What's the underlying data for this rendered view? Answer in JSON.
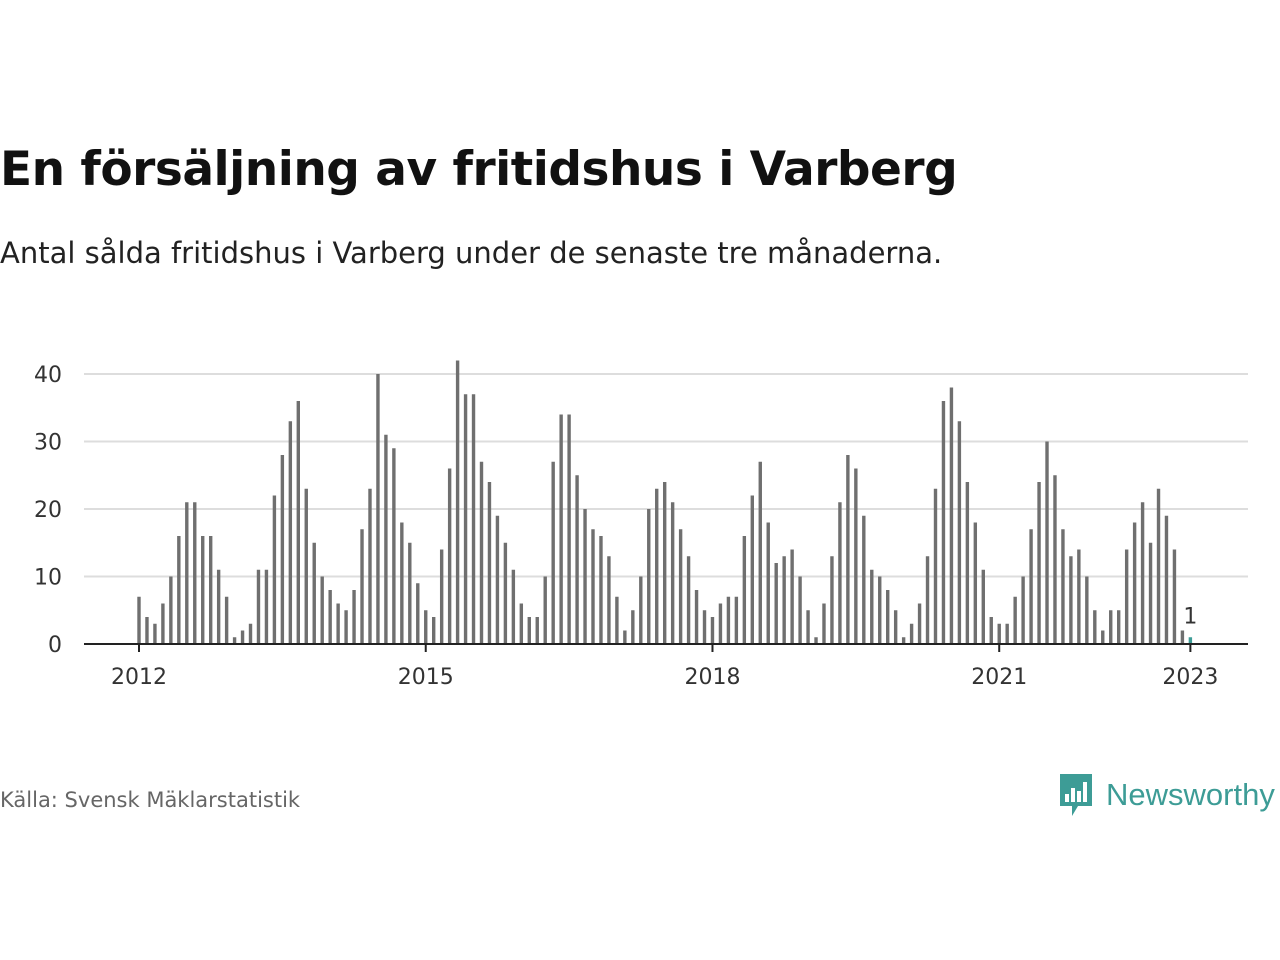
{
  "header": {
    "title": "En försäljning av fritidshus i Varberg",
    "subtitle": "Antal sålda fritidshus i Varberg under de senaste tre månaderna."
  },
  "footer": {
    "source": "Källa: Svensk Mäklarstatistik",
    "brand": "Newsworthy",
    "brand_icon": "newsworthy-logo-icon"
  },
  "colors": {
    "bar": "#6f6f6f",
    "highlight": "#3d9c96",
    "grid": "#dddddd",
    "axis": "#222222",
    "brand": "#3d9c96"
  },
  "chart_data": {
    "type": "bar",
    "title": "En försäljning av fritidshus i Varberg",
    "subtitle": "Antal sålda fritidshus i Varberg under de senaste tre månaderna.",
    "xlabel": "",
    "ylabel": "",
    "ylim": [
      0,
      42
    ],
    "yticks": [
      0,
      10,
      20,
      30,
      40
    ],
    "xticks": [
      "2012",
      "2015",
      "2018",
      "2021",
      "2023"
    ],
    "start": "2012-01",
    "end": "2023-01",
    "grid": true,
    "highlight": {
      "category": "2023-01",
      "label": "1"
    },
    "categories": [
      "2012-01",
      "2012-02",
      "2012-03",
      "2012-04",
      "2012-05",
      "2012-06",
      "2012-07",
      "2012-08",
      "2012-09",
      "2012-10",
      "2012-11",
      "2012-12",
      "2013-01",
      "2013-02",
      "2013-03",
      "2013-04",
      "2013-05",
      "2013-06",
      "2013-07",
      "2013-08",
      "2013-09",
      "2013-10",
      "2013-11",
      "2013-12",
      "2014-01",
      "2014-02",
      "2014-03",
      "2014-04",
      "2014-05",
      "2014-06",
      "2014-07",
      "2014-08",
      "2014-09",
      "2014-10",
      "2014-11",
      "2014-12",
      "2015-01",
      "2015-02",
      "2015-03",
      "2015-04",
      "2015-05",
      "2015-06",
      "2015-07",
      "2015-08",
      "2015-09",
      "2015-10",
      "2015-11",
      "2015-12",
      "2016-01",
      "2016-02",
      "2016-03",
      "2016-04",
      "2016-05",
      "2016-06",
      "2016-07",
      "2016-08",
      "2016-09",
      "2016-10",
      "2016-11",
      "2016-12",
      "2017-01",
      "2017-02",
      "2017-03",
      "2017-04",
      "2017-05",
      "2017-06",
      "2017-07",
      "2017-08",
      "2017-09",
      "2017-10",
      "2017-11",
      "2017-12",
      "2018-01",
      "2018-02",
      "2018-03",
      "2018-04",
      "2018-05",
      "2018-06",
      "2018-07",
      "2018-08",
      "2018-09",
      "2018-10",
      "2018-11",
      "2018-12",
      "2019-01",
      "2019-02",
      "2019-03",
      "2019-04",
      "2019-05",
      "2019-06",
      "2019-07",
      "2019-08",
      "2019-09",
      "2019-10",
      "2019-11",
      "2019-12",
      "2020-01",
      "2020-02",
      "2020-03",
      "2020-04",
      "2020-05",
      "2020-06",
      "2020-07",
      "2020-08",
      "2020-09",
      "2020-10",
      "2020-11",
      "2020-12",
      "2021-01",
      "2021-02",
      "2021-03",
      "2021-04",
      "2021-05",
      "2021-06",
      "2021-07",
      "2021-08",
      "2021-09",
      "2021-10",
      "2021-11",
      "2021-12",
      "2022-01",
      "2022-02",
      "2022-03",
      "2022-04",
      "2022-05",
      "2022-06",
      "2022-07",
      "2022-08",
      "2022-09",
      "2022-10",
      "2022-11",
      "2022-12",
      "2023-01"
    ],
    "values": [
      7,
      4,
      3,
      6,
      10,
      16,
      21,
      21,
      16,
      16,
      11,
      7,
      1,
      2,
      3,
      11,
      11,
      22,
      28,
      33,
      36,
      23,
      15,
      10,
      8,
      6,
      5,
      8,
      17,
      23,
      40,
      31,
      29,
      18,
      15,
      9,
      5,
      4,
      14,
      26,
      42,
      37,
      37,
      27,
      24,
      19,
      15,
      11,
      6,
      4,
      4,
      10,
      27,
      34,
      34,
      25,
      20,
      17,
      16,
      13,
      7,
      2,
      5,
      10,
      20,
      23,
      24,
      21,
      17,
      13,
      8,
      5,
      4,
      6,
      7,
      7,
      16,
      22,
      27,
      18,
      12,
      13,
      14,
      10,
      5,
      1,
      6,
      13,
      21,
      28,
      26,
      19,
      11,
      10,
      8,
      5,
      1,
      3,
      6,
      13,
      23,
      36,
      38,
      33,
      24,
      18,
      11,
      4,
      3,
      3,
      7,
      10,
      17,
      24,
      30,
      25,
      17,
      13,
      14,
      10,
      5,
      2,
      5,
      5,
      14,
      18,
      21,
      15,
      23,
      19,
      14,
      2,
      1
    ]
  }
}
